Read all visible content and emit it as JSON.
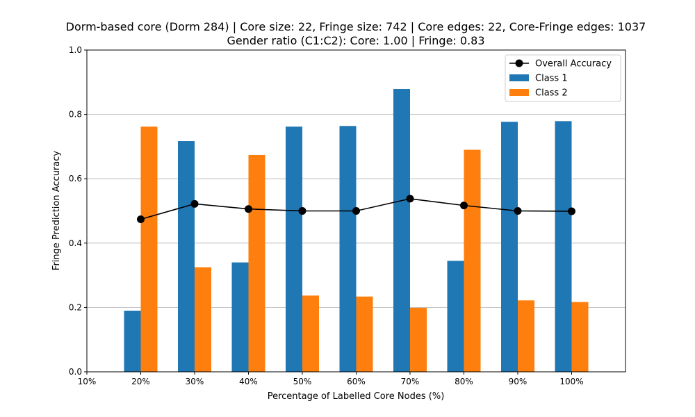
{
  "chart_data": {
    "type": "bar",
    "title": "Dorm-based core (Dorm 284) | Core size: 22, Fringe size: 742 | Core edges: 22, Core-Fringe edges: 1037",
    "subtitle": "Gender ratio (C1:C2): Core: 1.00 | Fringe: 0.83",
    "xlabel": "Percentage of Labelled Core Nodes (%)",
    "ylabel": "Fringe Prediction Accuracy",
    "x_ticks": [
      "10%",
      "20%",
      "30%",
      "40%",
      "50%",
      "60%",
      "70%",
      "80%",
      "90%",
      "100%"
    ],
    "y_ticks": [
      "0.0",
      "0.2",
      "0.4",
      "0.6",
      "0.8",
      "1.0"
    ],
    "ylim": [
      0,
      1
    ],
    "grid": "horizontal",
    "legend_position": "top-right",
    "categories": [
      "20%",
      "30%",
      "40%",
      "50%",
      "60%",
      "70%",
      "80%",
      "90%",
      "100%"
    ],
    "series": [
      {
        "name": "Class 1",
        "kind": "bar",
        "color": "#1f77b4",
        "values": [
          0.19,
          0.717,
          0.34,
          0.762,
          0.764,
          0.879,
          0.345,
          0.777,
          0.779
        ]
      },
      {
        "name": "Class 2",
        "kind": "bar",
        "color": "#ff7f0e",
        "values": [
          0.762,
          0.325,
          0.674,
          0.237,
          0.234,
          0.199,
          0.69,
          0.222,
          0.217
        ]
      },
      {
        "name": "Overall Accuracy",
        "kind": "line",
        "color": "#000000",
        "values": [
          0.474,
          0.522,
          0.506,
          0.5,
          0.5,
          0.538,
          0.517,
          0.5,
          0.499
        ]
      }
    ]
  }
}
